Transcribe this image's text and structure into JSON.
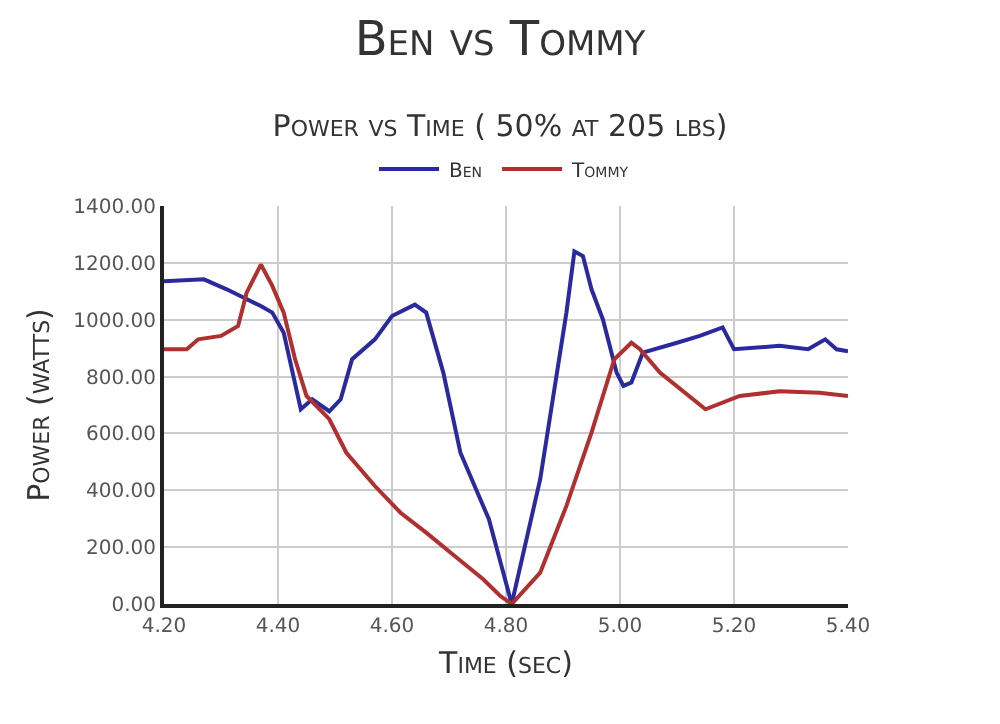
{
  "chart_data": {
    "type": "line",
    "title": "Ben vs Tommy",
    "subtitle": "Power vs Time ( 50% at 205 lbs)",
    "xlabel": "Time (sec)",
    "ylabel": "Power (watts)",
    "xlim": [
      4.2,
      5.4
    ],
    "xticks": [
      {
        "value": 4.2,
        "label": "4.20"
      },
      {
        "value": 4.4,
        "label": "4.40"
      },
      {
        "value": 4.6,
        "label": "4.60"
      },
      {
        "value": 4.8,
        "label": "4.80"
      },
      {
        "value": 5,
        "label": "5.00"
      },
      {
        "value": 5.2,
        "label": "5.20"
      },
      {
        "value": 5.4,
        "label": "5.40"
      }
    ],
    "ylim": [
      0,
      1400
    ],
    "yticks": [
      {
        "value": 0,
        "label": "0.00"
      },
      {
        "value": 200,
        "label": "200.00"
      },
      {
        "value": 400,
        "label": "400.00"
      },
      {
        "value": 600,
        "label": "600.00"
      },
      {
        "value": 800,
        "label": "800.00"
      },
      {
        "value": 1000,
        "label": "1000.00"
      },
      {
        "value": 1200,
        "label": "1200.00"
      },
      {
        "value": 1400,
        "label": "1400.00"
      }
    ],
    "grid": true,
    "legend": "top",
    "marker": "none",
    "line_style": "solid",
    "series": [
      {
        "name": "Ben",
        "color": "#2a2a9e",
        "x": [
          4.2,
          4.27,
          4.31,
          4.37,
          4.39,
          4.41,
          4.44,
          4.46,
          4.49,
          4.51,
          4.53,
          4.57,
          4.6,
          4.64,
          4.66,
          4.69,
          4.72,
          4.77,
          4.81,
          4.86,
          4.906,
          4.92,
          4.935,
          4.95,
          4.97,
          4.994,
          5.006,
          5.02,
          5.04,
          5.1,
          5.14,
          5.18,
          5.2,
          5.28,
          5.33,
          5.36,
          5.38,
          5.4
        ],
        "values": [
          1135,
          1142,
          1107,
          1048,
          1025,
          954,
          685,
          720,
          678,
          720,
          861,
          931,
          1013,
          1053,
          1025,
          814,
          532,
          298,
          0,
          439,
          1025,
          1240,
          1224,
          1107,
          1001,
          814,
          767,
          779,
          884,
          919,
          943,
          973,
          896,
          908,
          896,
          931,
          896,
          889
        ]
      },
      {
        "name": "Tommy",
        "color": "#b03030",
        "x": [
          4.2,
          4.24,
          4.26,
          4.3,
          4.33,
          4.345,
          4.37,
          4.39,
          4.41,
          4.43,
          4.45,
          4.49,
          4.52,
          4.57,
          4.615,
          4.66,
          4.71,
          4.76,
          4.79,
          4.81,
          4.86,
          4.906,
          4.95,
          4.99,
          5.02,
          5.035,
          5.07,
          5.15,
          5.21,
          5.28,
          5.35,
          5.4
        ],
        "values": [
          896,
          896,
          931,
          943,
          978,
          1095,
          1194,
          1119,
          1025,
          861,
          732,
          650,
          532,
          415,
          321,
          251,
          169,
          87,
          28,
          0,
          110,
          345,
          603,
          861,
          919,
          896,
          814,
          685,
          732,
          748,
          743,
          732
        ]
      }
    ]
  }
}
